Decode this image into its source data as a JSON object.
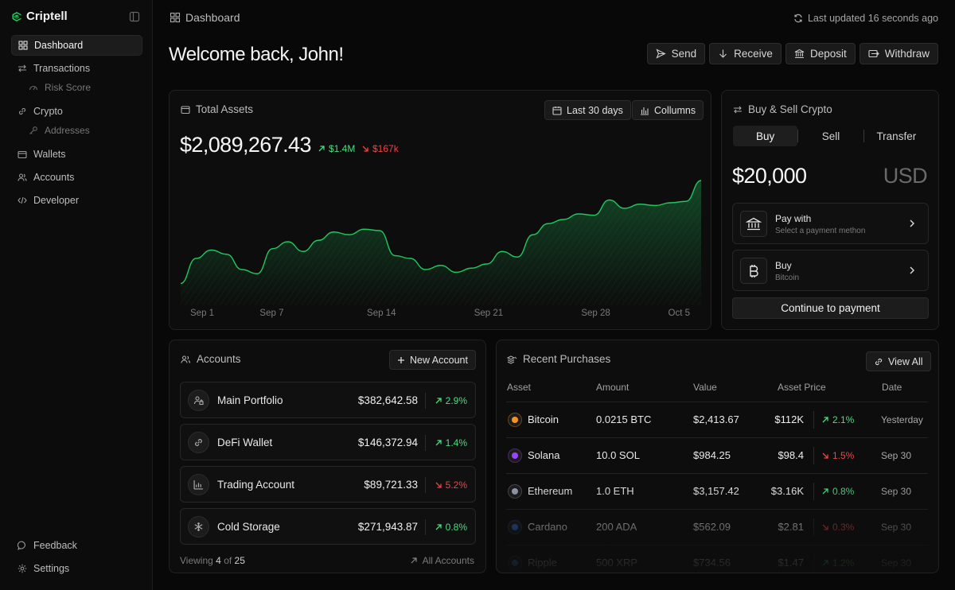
{
  "app": {
    "name": "Criptell",
    "accent": "#22c55e"
  },
  "sidebar": {
    "items": [
      {
        "label": "Dashboard",
        "icon": "grid-icon",
        "active": true
      },
      {
        "label": "Transactions",
        "icon": "arrows-swap-icon"
      },
      {
        "label": "Risk Score",
        "icon": "gauge-icon",
        "sub": true
      },
      {
        "label": "Crypto",
        "icon": "link-icon"
      },
      {
        "label": "Addresses",
        "icon": "key-icon",
        "sub": true
      },
      {
        "label": "Wallets",
        "icon": "wallet-icon"
      },
      {
        "label": "Accounts",
        "icon": "users-icon"
      },
      {
        "label": "Developer",
        "icon": "code-icon"
      }
    ],
    "bottom": [
      {
        "label": "Feedback",
        "icon": "message-icon"
      },
      {
        "label": "Settings",
        "icon": "gear-icon"
      }
    ]
  },
  "header": {
    "breadcrumb": "Dashboard",
    "updated": "Last updated 16 seconds ago",
    "welcome": "Welcome back, John!",
    "actions": [
      "Send",
      "Receive",
      "Deposit",
      "Withdraw"
    ]
  },
  "total_assets": {
    "title": "Total Assets",
    "range_button": "Last 30 days",
    "columns_button": "Collumns",
    "value": "$2,089,267.43",
    "gain": "$1.4M",
    "loss": "$167k"
  },
  "chart_data": {
    "type": "area",
    "x": [
      "Sep 1",
      "Sep 2",
      "Sep 3",
      "Sep 4",
      "Sep 5",
      "Sep 6",
      "Sep 7",
      "Sep 8",
      "Sep 9",
      "Sep 10",
      "Sep 11",
      "Sep 12",
      "Sep 13",
      "Sep 14",
      "Sep 15",
      "Sep 16",
      "Sep 17",
      "Sep 18",
      "Sep 19",
      "Sep 20",
      "Sep 21",
      "Sep 22",
      "Sep 23",
      "Sep 24",
      "Sep 25",
      "Sep 26",
      "Sep 27",
      "Sep 28",
      "Sep 29",
      "Sep 30",
      "Oct 1",
      "Oct 2",
      "Oct 3",
      "Oct 4",
      "Oct 5"
    ],
    "tick_labels": [
      "Sep 1",
      "Sep 7",
      "Sep 14",
      "Sep 21",
      "Sep 28",
      "Oct 5"
    ],
    "tick_indices": [
      0,
      6,
      13,
      20,
      27,
      34
    ],
    "values": [
      10,
      28,
      34,
      31,
      20,
      17,
      35,
      40,
      33,
      41,
      47,
      45,
      49,
      48,
      30,
      28,
      20,
      23,
      18,
      21,
      24,
      33,
      29,
      45,
      53,
      56,
      60,
      59,
      70,
      64,
      67,
      66,
      68,
      69,
      84
    ],
    "ylim": [
      0,
      100
    ],
    "line_color": "#22c55e",
    "grid": false
  },
  "buy_sell": {
    "title": "Buy & Sell Crypto",
    "tabs": [
      "Buy",
      "Sell",
      "Transfer"
    ],
    "active_tab": 0,
    "amount": "$20,000",
    "currency": "USD",
    "pay_title": "Pay with",
    "pay_sub": "Select a payment methon",
    "buy_title": "Buy",
    "buy_sub": "Bitcoin",
    "continue": "Continue to payment"
  },
  "accounts": {
    "title": "Accounts",
    "new_button": "New Account",
    "rows": [
      {
        "name": "Main Portfolio",
        "value": "$382,642.58",
        "change": "2.9%",
        "dir": "up",
        "icon": "user-lock-icon"
      },
      {
        "name": "DeFi Wallet",
        "value": "$146,372.94",
        "change": "1.4%",
        "dir": "up",
        "icon": "link-icon"
      },
      {
        "name": "Trading Account",
        "value": "$89,721.33",
        "change": "5.2%",
        "dir": "down",
        "icon": "chart-icon"
      },
      {
        "name": "Cold Storage",
        "value": "$271,943.87",
        "change": "0.8%",
        "dir": "up",
        "icon": "snowflake-icon"
      }
    ],
    "viewing_prefix": "Viewing",
    "viewing_count": "4",
    "viewing_of": "of",
    "viewing_total": "25",
    "all_link": "All Accounts"
  },
  "purchases": {
    "title": "Recent Purchases",
    "view_all": "View All",
    "headers": [
      "Asset",
      "Amount",
      "Value",
      "Asset Price",
      "Date"
    ],
    "rows": [
      {
        "asset": "Bitcoin",
        "amount": "0.0215 BTC",
        "value": "$2,413.67",
        "price": "$112K",
        "change": "2.1%",
        "dir": "up",
        "date": "Yesterday",
        "coin_color": "#f7931a"
      },
      {
        "asset": "Solana",
        "amount": "10.0 SOL",
        "value": "$984.25",
        "price": "$98.4",
        "change": "1.5%",
        "dir": "down",
        "date": "Sep 30",
        "coin_color": "#9945ff"
      },
      {
        "asset": "Ethereum",
        "amount": "1.0 ETH",
        "value": "$3,157.42",
        "price": "$3.16K",
        "change": "0.8%",
        "dir": "up",
        "date": "Sep 30",
        "coin_color": "#9aa0b4"
      },
      {
        "asset": "Cardano",
        "amount": "200 ADA",
        "value": "$562.09",
        "price": "$2.81",
        "change": "0.3%",
        "dir": "down",
        "date": "Sep 30",
        "coin_color": "#3468d1"
      },
      {
        "asset": "Ripple",
        "amount": "500 XRP",
        "value": "$734.56",
        "price": "$1.47",
        "change": "1.2%",
        "dir": "up",
        "date": "Sep 30",
        "coin_color": "#3aa0d8"
      }
    ]
  }
}
